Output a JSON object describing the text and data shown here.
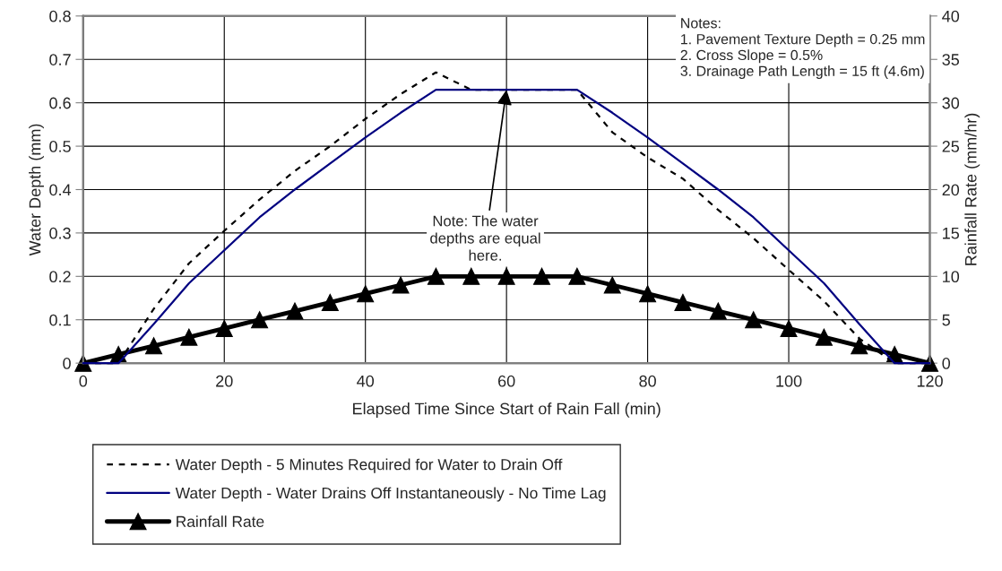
{
  "chart_data": {
    "type": "line",
    "xlabel": "Elapsed Time Since Start of Rain Fall (min)",
    "ylabel": "Water Depth (mm)",
    "y2label": "Rainfall Rate (mm/hr)",
    "x": [
      0,
      5,
      10,
      15,
      20,
      25,
      30,
      35,
      40,
      45,
      50,
      55,
      60,
      65,
      70,
      75,
      80,
      85,
      90,
      95,
      100,
      105,
      110,
      115,
      120
    ],
    "series": [
      {
        "name": "Water Depth - 5 Minutes Required for Water to Drain Off",
        "color": "#000000",
        "line_style": "dotted",
        "marker": "none",
        "values": [
          0,
          0,
          0.125,
          0.23,
          0.305,
          0.377,
          0.443,
          0.5,
          0.563,
          0.62,
          0.67,
          0.63,
          0.63,
          0.63,
          0.63,
          0.532,
          0.474,
          0.425,
          0.353,
          0.288,
          0.215,
          0.143,
          0.057,
          0,
          0
        ]
      },
      {
        "name": "Water Depth - Water Drains Off Instantaneously - No Time Lag",
        "color": "#000080",
        "line_style": "solid",
        "marker": "none",
        "values": [
          0,
          0,
          0.09,
          0.184,
          0.26,
          0.336,
          0.4,
          0.46,
          0.52,
          0.577,
          0.63,
          0.63,
          0.63,
          0.63,
          0.63,
          0.577,
          0.52,
          0.46,
          0.4,
          0.336,
          0.26,
          0.184,
          0.09,
          0,
          0
        ]
      },
      {
        "name": "Rainfall Rate",
        "color": "#000000",
        "line_style": "solid",
        "marker": "triangle",
        "axis": "y2",
        "values": [
          0,
          1,
          2,
          3,
          4,
          5,
          6,
          7,
          8,
          9,
          10,
          10,
          10,
          10,
          10,
          9,
          8,
          7,
          6,
          5,
          4,
          3,
          2,
          1,
          0
        ]
      }
    ],
    "xlim": [
      0,
      120
    ],
    "xticks": [
      0,
      20,
      40,
      60,
      80,
      100,
      120
    ],
    "ylim": [
      0,
      0.8
    ],
    "yticks": [
      0,
      0.1,
      0.2,
      0.3,
      0.4,
      0.5,
      0.6,
      0.7,
      0.8
    ],
    "y2lim": [
      0,
      40
    ],
    "y2ticks": [
      0,
      5,
      10,
      15,
      20,
      25,
      30,
      35,
      40
    ],
    "annotations": [
      "Notes:\n1. Pavement Texture Depth = 0.25 mm\n2. Cross Slope = 0.5%\n3. Drainage Path Length = 15 ft (4.6m)",
      {
        "text": "Note: The water\ndepths are equal\nhere.",
        "x": 60,
        "y": 0.63
      }
    ],
    "grid": true,
    "legend": "bottom"
  }
}
